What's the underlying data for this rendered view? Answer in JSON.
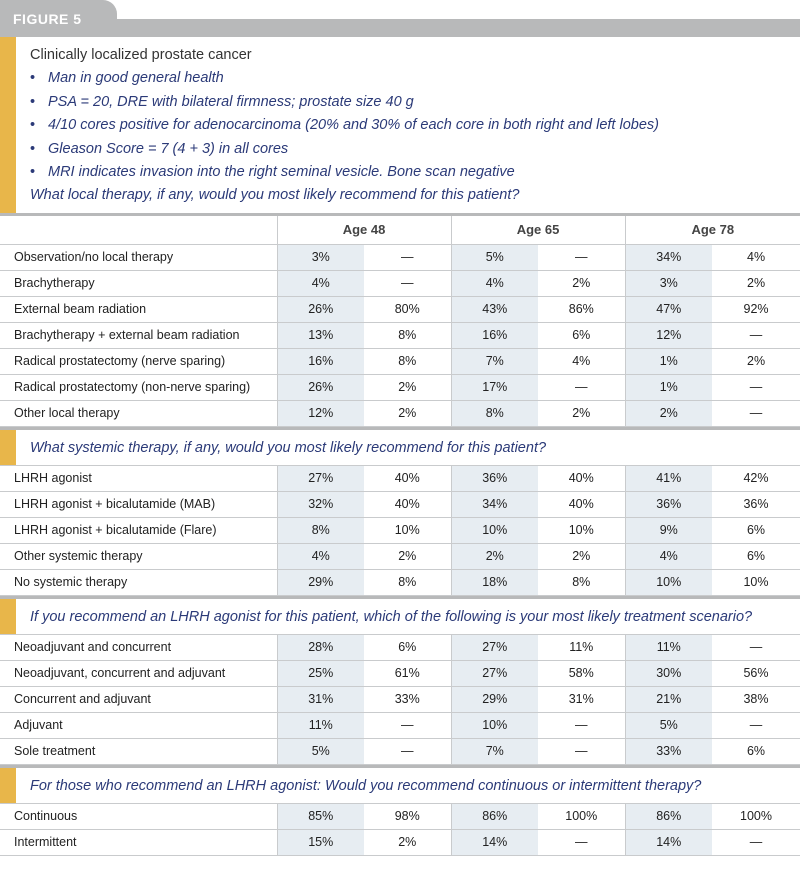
{
  "figure_label": "FIGURE 5",
  "case": {
    "title": "Clinically localized prostate cancer",
    "bullets": [
      "Man in good general health",
      "PSA = 20, DRE with bilateral firmness; prostate size 40 g",
      "4/10 cores positive for adenocarcinoma (20% and 30% of each core in both right and left lobes)",
      "Gleason Score = 7 (4 + 3) in all cores",
      "MRI indicates invasion into the right seminal vesicle. Bone scan negative"
    ],
    "question": "What local therapy, if any, would you most likely recommend for this patient?"
  },
  "ages": [
    "Age 48",
    "Age 65",
    "Age 78"
  ],
  "local_therapy": [
    {
      "label": "Observation/no local therapy",
      "values": [
        "3%",
        "—",
        "5%",
        "—",
        "34%",
        "4%"
      ]
    },
    {
      "label": "Brachytherapy",
      "values": [
        "4%",
        "—",
        "4%",
        "2%",
        "3%",
        "2%"
      ]
    },
    {
      "label": "External beam radiation",
      "values": [
        "26%",
        "80%",
        "43%",
        "86%",
        "47%",
        "92%"
      ]
    },
    {
      "label": "Brachytherapy + external beam radiation",
      "values": [
        "13%",
        "8%",
        "16%",
        "6%",
        "12%",
        "—"
      ]
    },
    {
      "label": "Radical prostatectomy (nerve sparing)",
      "values": [
        "16%",
        "8%",
        "7%",
        "4%",
        "1%",
        "2%"
      ]
    },
    {
      "label": "Radical prostatectomy (non-nerve sparing)",
      "values": [
        "26%",
        "2%",
        "17%",
        "—",
        "1%",
        "—"
      ]
    },
    {
      "label": "Other local therapy",
      "values": [
        "12%",
        "2%",
        "8%",
        "2%",
        "2%",
        "—"
      ]
    }
  ],
  "systemic": {
    "question": "What systemic therapy, if any, would you most likely recommend for this patient?",
    "rows": [
      {
        "label": "LHRH agonist",
        "values": [
          "27%",
          "40%",
          "36%",
          "40%",
          "41%",
          "42%"
        ]
      },
      {
        "label": "LHRH agonist + bicalutamide (MAB)",
        "values": [
          "32%",
          "40%",
          "34%",
          "40%",
          "36%",
          "36%"
        ]
      },
      {
        "label": "LHRH agonist + bicalutamide (Flare)",
        "values": [
          "8%",
          "10%",
          "10%",
          "10%",
          "9%",
          "6%"
        ]
      },
      {
        "label": "Other systemic therapy",
        "values": [
          "4%",
          "2%",
          "2%",
          "2%",
          "4%",
          "6%"
        ]
      },
      {
        "label": "No systemic therapy",
        "values": [
          "29%",
          "8%",
          "18%",
          "8%",
          "10%",
          "10%"
        ]
      }
    ]
  },
  "scenario": {
    "question": "If you recommend an LHRH agonist for this patient, which of the following is your most likely treatment scenario?",
    "rows": [
      {
        "label": "Neoadjuvant and concurrent",
        "values": [
          "28%",
          "6%",
          "27%",
          "11%",
          "11%",
          "—"
        ]
      },
      {
        "label": "Neoadjuvant, concurrent and adjuvant",
        "values": [
          "25%",
          "61%",
          "27%",
          "58%",
          "30%",
          "56%"
        ]
      },
      {
        "label": "Concurrent and adjuvant",
        "values": [
          "31%",
          "33%",
          "29%",
          "31%",
          "21%",
          "38%"
        ]
      },
      {
        "label": "Adjuvant",
        "values": [
          "11%",
          "—",
          "10%",
          "—",
          "5%",
          "—"
        ]
      },
      {
        "label": "Sole treatment",
        "values": [
          "5%",
          "—",
          "7%",
          "—",
          "33%",
          "6%"
        ]
      }
    ]
  },
  "continuous": {
    "question": "For those who recommend an LHRH agonist: Would you recommend continuous or intermittent therapy?",
    "rows": [
      {
        "label": "Continuous",
        "values": [
          "85%",
          "98%",
          "86%",
          "100%",
          "86%",
          "100%"
        ]
      },
      {
        "label": "Intermittent",
        "values": [
          "15%",
          "2%",
          "14%",
          "—",
          "14%",
          "—"
        ]
      }
    ]
  }
}
